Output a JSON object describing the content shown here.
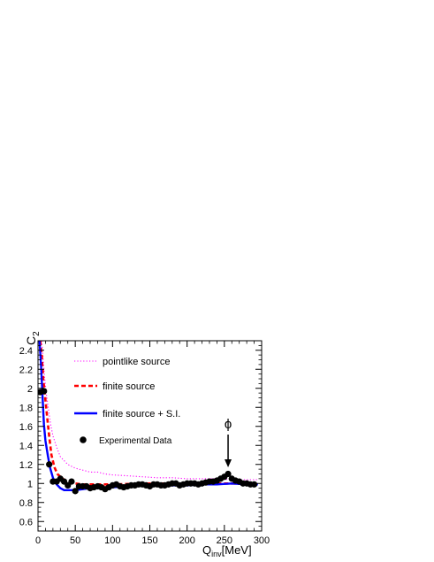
{
  "chart_data": {
    "type": "line",
    "ylabel": "C",
    "ylabel_sub": "2",
    "xlabel_main": "Q",
    "xlabel_sub": "inv",
    "xlabel_unit": "[MeV]",
    "xlim": [
      0,
      300
    ],
    "ylim": [
      0.5,
      2.5
    ],
    "xticks": [
      "0",
      "50",
      "100",
      "150",
      "200",
      "250",
      "300"
    ],
    "yticks": [
      "0.6",
      "0.8",
      "1",
      "1.2",
      "1.4",
      "1.6",
      "1.8",
      "2",
      "2.2",
      "2.4"
    ],
    "grid": false,
    "legend_position": "upper-left",
    "annotation": {
      "text": "ϕ",
      "x": 255,
      "y": 1.1
    },
    "series": [
      {
        "name": "pointlike source",
        "style": "dotted",
        "color": "#ff00ff",
        "x": [
          5,
          7,
          9,
          11,
          14,
          17,
          20,
          25,
          30,
          40,
          50,
          60,
          70,
          80,
          90,
          100,
          120,
          140,
          160,
          180,
          200,
          220,
          240,
          260,
          280,
          295
        ],
        "y": [
          2.5,
          2.3,
          2.1,
          1.95,
          1.78,
          1.62,
          1.5,
          1.38,
          1.28,
          1.2,
          1.16,
          1.14,
          1.12,
          1.12,
          1.1,
          1.09,
          1.08,
          1.07,
          1.06,
          1.06,
          1.05,
          1.05,
          1.05,
          1.04,
          1.04,
          1.04
        ]
      },
      {
        "name": "finite source",
        "style": "dashed",
        "color": "#ff0000",
        "x": [
          3,
          5,
          7,
          9,
          12,
          15,
          18,
          22,
          26,
          30,
          35,
          40,
          50,
          60,
          80,
          100,
          150,
          200,
          250,
          295
        ],
        "y": [
          2.5,
          2.35,
          2.1,
          1.95,
          1.72,
          1.5,
          1.3,
          1.17,
          1.1,
          1.07,
          1.04,
          1.02,
          1.0,
          0.99,
          0.99,
          0.99,
          1.0,
          1.0,
          1.0,
          1.0
        ]
      },
      {
        "name": "finite source + S.I.",
        "style": "solid",
        "color": "#0000ff",
        "x": [
          2,
          4,
          6,
          8,
          10,
          13,
          16,
          20,
          25,
          30,
          35,
          40,
          50,
          60,
          70,
          80,
          100,
          120,
          150,
          200,
          220,
          240,
          260,
          280,
          295
        ],
        "y": [
          2.5,
          2.25,
          1.92,
          1.62,
          1.45,
          1.3,
          1.17,
          1.06,
          0.99,
          0.95,
          0.93,
          0.93,
          0.93,
          0.94,
          0.95,
          0.95,
          0.96,
          0.97,
          0.98,
          0.98,
          0.99,
          0.99,
          1.0,
          0.99,
          0.99
        ]
      },
      {
        "name": "Experimental Data",
        "style": "markers",
        "color": "#000000",
        "x": [
          3,
          8,
          15,
          20,
          25,
          30,
          35,
          40,
          45,
          50,
          55,
          60,
          65,
          70,
          75,
          80,
          85,
          90,
          95,
          100,
          105,
          110,
          115,
          120,
          125,
          130,
          135,
          140,
          145,
          150,
          155,
          160,
          165,
          170,
          175,
          180,
          185,
          190,
          195,
          200,
          205,
          210,
          215,
          220,
          225,
          230,
          235,
          240,
          245,
          250,
          255,
          260,
          265,
          270,
          275,
          280,
          285,
          290
        ],
        "y": [
          1.96,
          1.97,
          1.2,
          1.02,
          1.02,
          1.05,
          1.02,
          0.98,
          1.02,
          0.92,
          0.97,
          0.97,
          0.97,
          0.95,
          0.96,
          0.97,
          0.96,
          0.94,
          0.96,
          0.98,
          0.99,
          0.97,
          0.96,
          0.97,
          0.98,
          0.98,
          0.99,
          0.99,
          0.98,
          0.97,
          0.99,
          0.99,
          0.98,
          0.98,
          0.99,
          1.0,
          1.0,
          0.98,
          0.99,
          1.0,
          1.0,
          1.0,
          0.99,
          1.0,
          1.01,
          1.02,
          1.02,
          1.03,
          1.05,
          1.07,
          1.1,
          1.05,
          1.03,
          1.02,
          1.0,
          1.0,
          0.99,
          0.99
        ]
      }
    ]
  }
}
